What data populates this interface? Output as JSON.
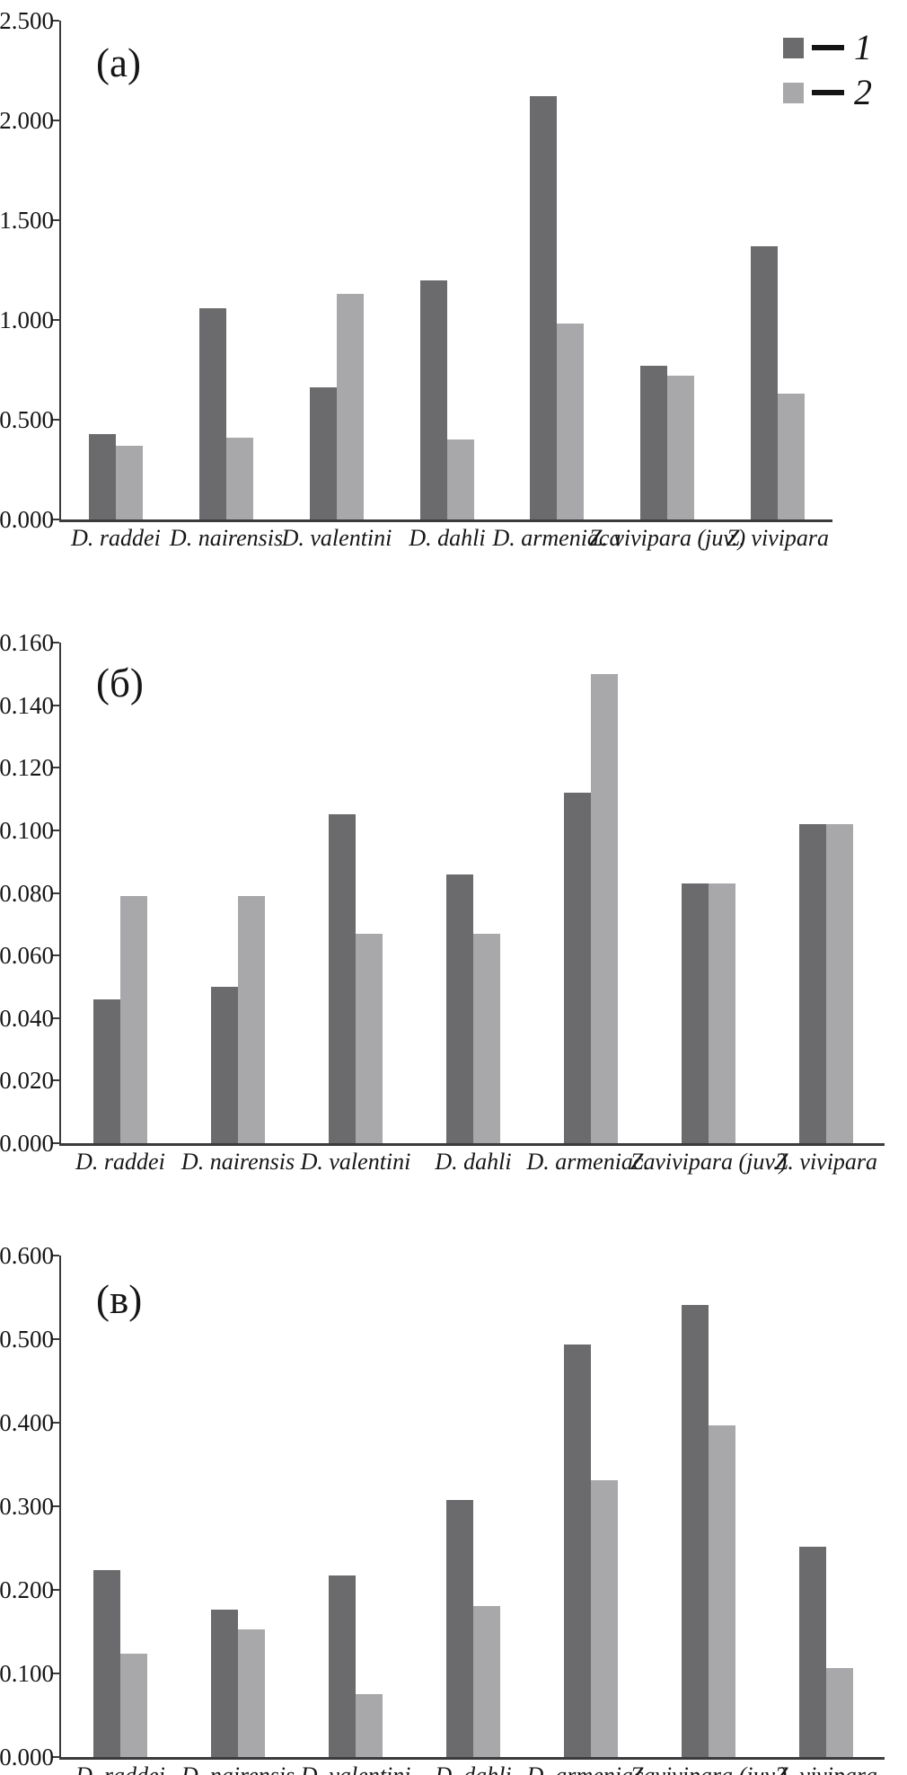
{
  "figure": {
    "background": "#ffffff",
    "axis_color": "#3b3b3d",
    "text_color": "#161616",
    "series_colors": {
      "1": "#6b6b6d",
      "2": "#a8a8aa"
    },
    "legend": {
      "position": "top-right",
      "items": [
        {
          "label": "1",
          "series": "1"
        },
        {
          "label": "2",
          "series": "2"
        }
      ]
    }
  },
  "chart_data": [
    {
      "type": "bar",
      "panel_label": "(а)",
      "title": "",
      "xlabel": "",
      "ylabel": "",
      "grid": false,
      "legend_position": "top-right",
      "categories": [
        "D. raddei",
        "D. nairensis",
        "D. valentini",
        "D. dahli",
        "D. armeniaca",
        "Z. vivipara (juv.)",
        "Z. vivipara"
      ],
      "series": [
        {
          "name": "1",
          "values": [
            0.43,
            1.06,
            0.66,
            1.2,
            2.12,
            0.77,
            1.37
          ]
        },
        {
          "name": "2",
          "values": [
            0.37,
            0.41,
            1.13,
            0.4,
            0.98,
            0.72,
            0.63
          ]
        }
      ],
      "ylim": [
        0,
        2.5
      ],
      "ytick_step": 0.5,
      "ytick_labels": [
        "2.500",
        "2.000",
        "1.500",
        "1.000",
        "0.500",
        "0.000"
      ]
    },
    {
      "type": "bar",
      "panel_label": "(б)",
      "title": "",
      "xlabel": "",
      "ylabel": "",
      "grid": false,
      "categories": [
        "D. raddei",
        "D. nairensis",
        "D. valentini",
        "D. dahli",
        "D. armeniaca",
        "Z. vivipara (juv.)",
        "Z. vivipara"
      ],
      "series": [
        {
          "name": "1",
          "values": [
            0.046,
            0.05,
            0.105,
            0.086,
            0.112,
            0.083,
            0.102
          ]
        },
        {
          "name": "2",
          "values": [
            0.079,
            0.079,
            0.067,
            0.067,
            0.15,
            0.083,
            0.102
          ]
        }
      ],
      "ylim": [
        0,
        0.16
      ],
      "ytick_step": 0.02,
      "ytick_labels": [
        "0.160",
        "0.140",
        "0.120",
        "0.100",
        "0.080",
        "0.060",
        "0.040",
        "0.020",
        "0.000"
      ]
    },
    {
      "type": "bar",
      "panel_label": "(в)",
      "title": "",
      "xlabel": "",
      "ylabel": "",
      "grid": false,
      "categories": [
        "D. raddei",
        "D. nairensis",
        "D. valentini",
        "D. dahli",
        "D. armeniaca",
        "Z. vivipara (juv.)",
        "Z. vivipara"
      ],
      "series": [
        {
          "name": "1",
          "values": [
            0.224,
            0.176,
            0.217,
            0.308,
            0.494,
            0.541,
            0.252
          ]
        },
        {
          "name": "2",
          "values": [
            0.124,
            0.153,
            0.075,
            0.181,
            0.331,
            0.397,
            0.106
          ]
        }
      ],
      "ylim": [
        0,
        0.6
      ],
      "ytick_step": 0.1,
      "ytick_labels": [
        "0.600",
        "0.500",
        "0.400",
        "0.300",
        "0.200",
        "0.100",
        "0.000"
      ]
    }
  ]
}
